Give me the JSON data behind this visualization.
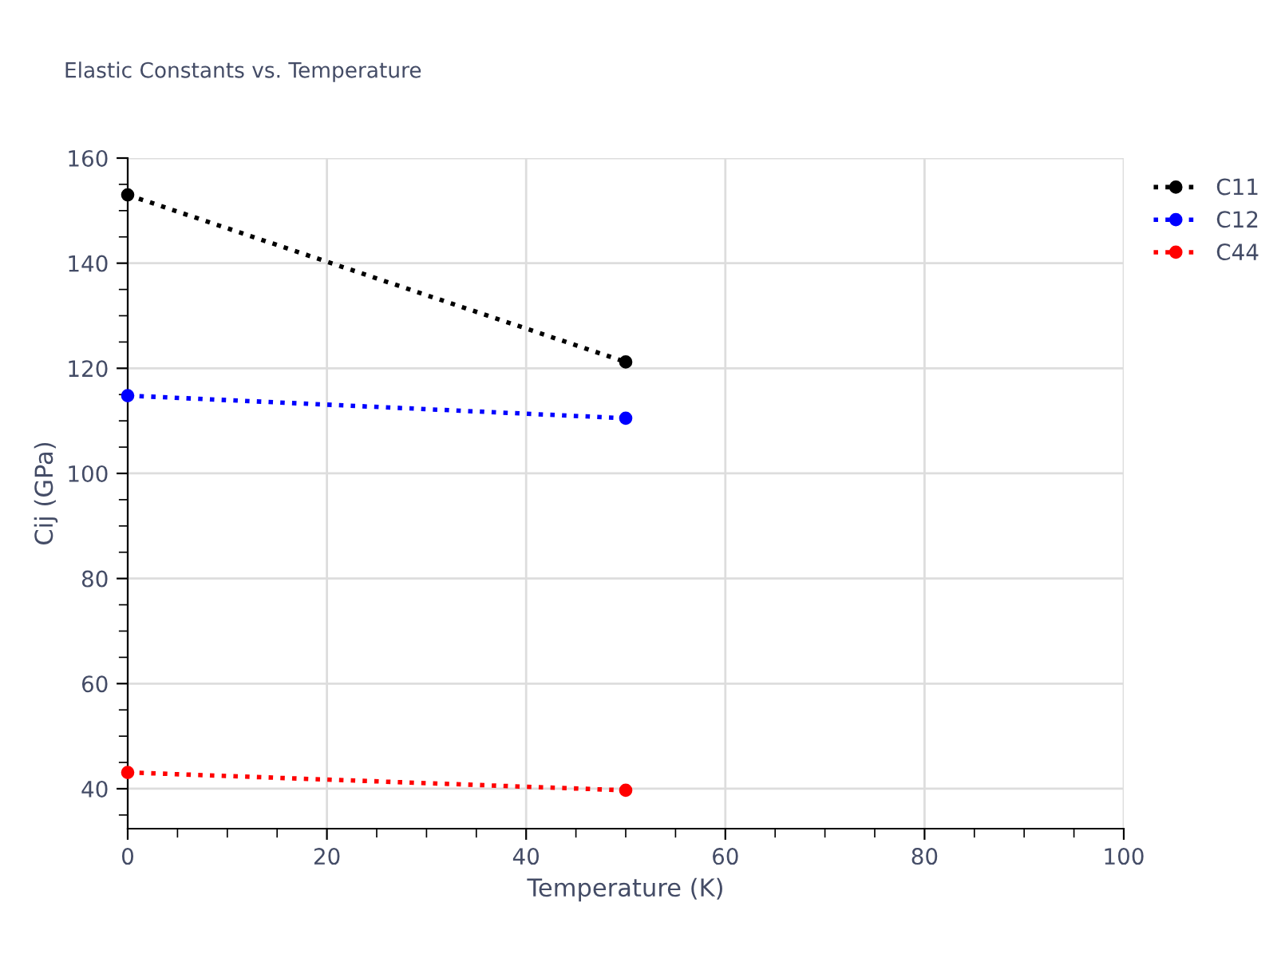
{
  "chart_data": {
    "type": "line",
    "title": "Elastic Constants vs. Temperature",
    "xlabel": "Temperature (K)",
    "ylabel": "Cij (GPa)",
    "x": [
      0,
      50
    ],
    "series": [
      {
        "name": "C11",
        "color": "#000000",
        "values": [
          153.0,
          121.2
        ]
      },
      {
        "name": "C12",
        "color": "#0000ff",
        "values": [
          114.8,
          110.5
        ]
      },
      {
        "name": "C44",
        "color": "#ff0000",
        "values": [
          43.1,
          39.7
        ]
      }
    ],
    "xlim": [
      0,
      100
    ],
    "xticks": [
      0,
      20,
      40,
      60,
      80,
      100
    ],
    "ylim": [
      32.4,
      160
    ],
    "yticks": [
      40,
      60,
      80,
      100,
      120,
      140,
      160
    ],
    "grid": true,
    "legend": "top right",
    "marker": "circle",
    "line_style": "dotted"
  }
}
